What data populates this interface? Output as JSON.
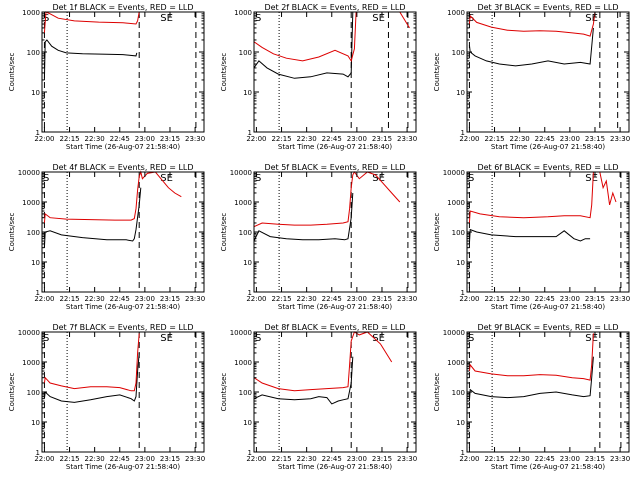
{
  "figure": {
    "xlabel": "Start Time (26-Aug-07 21:58:40)",
    "ylabel": "Counts/sec",
    "xticks": [
      "22:00",
      "22:15",
      "22:30",
      "22:45",
      "23:00",
      "23:15",
      "23:30"
    ],
    "yticks": [
      "1",
      "10",
      "100",
      "1000"
    ],
    "yticks_big": [
      "1",
      "10",
      "100",
      "1000",
      "10000"
    ],
    "saa_label": "S",
    "eclipse_label": "SE",
    "colors": {
      "events": "#000000",
      "lld": "#dd0000",
      "axes": "#000000"
    }
  },
  "chart_data": [
    {
      "type": "line",
      "title": "Det 1f BLACK = Events, RED = LLD",
      "xlim_min": [
        0,
        100
      ],
      "ylim_log10": [
        0,
        3
      ],
      "log_y": true,
      "dotted_x": [
        15.5
      ],
      "dashed_x": [
        1.5,
        60,
        95
      ],
      "series": [
        {
          "name": "Events",
          "color": "black",
          "x": [
            1.5,
            2,
            3,
            6,
            10,
            15,
            25,
            40,
            50,
            58,
            58.5
          ],
          "y": [
            20,
            180,
            200,
            140,
            110,
            95,
            90,
            88,
            86,
            80,
            95
          ]
        },
        {
          "name": "LLD",
          "color": "red",
          "x": [
            1.5,
            2.5,
            5,
            10,
            20,
            35,
            50,
            58,
            59,
            60
          ],
          "y": [
            300,
            1000,
            900,
            700,
            600,
            560,
            540,
            500,
            600,
            1000
          ]
        }
      ]
    },
    {
      "type": "line",
      "title": "Det 2f BLACK = Events, RED = LLD",
      "xlim_min": [
        0,
        100
      ],
      "ylim_log10": [
        0,
        3
      ],
      "log_y": true,
      "dotted_x": [
        15.5
      ],
      "dashed_x": [
        60,
        83,
        95
      ],
      "series": [
        {
          "name": "Events",
          "color": "black",
          "x": [
            0,
            3,
            8,
            15,
            25,
            35,
            45,
            55,
            58,
            60,
            61
          ],
          "y": [
            40,
            60,
            40,
            28,
            22,
            24,
            30,
            28,
            24,
            30,
            1000
          ]
        },
        {
          "name": "LLD",
          "color": "red",
          "x": [
            0,
            5,
            12,
            20,
            30,
            40,
            50,
            58,
            60,
            62,
            63,
            90,
            96
          ],
          "y": [
            180,
            130,
            90,
            70,
            60,
            75,
            110,
            80,
            60,
            120,
            1000,
            1000,
            400
          ]
        }
      ]
    },
    {
      "type": "line",
      "title": "Det 3f BLACK = Events, RED = LLD",
      "xlim_min": [
        0,
        100
      ],
      "ylim_log10": [
        0,
        3
      ],
      "log_y": true,
      "dotted_x": [
        15.5
      ],
      "dashed_x": [
        1.5,
        82,
        93
      ],
      "series": [
        {
          "name": "Events",
          "color": "black",
          "x": [
            1.5,
            2,
            5,
            12,
            20,
            30,
            40,
            50,
            60,
            70,
            76,
            78
          ],
          "y": [
            150,
            100,
            80,
            60,
            50,
            45,
            50,
            60,
            50,
            55,
            50,
            400
          ]
        },
        {
          "name": "LLD",
          "color": "red",
          "x": [
            1.5,
            2,
            6,
            15,
            25,
            35,
            45,
            55,
            65,
            72,
            76,
            78,
            79
          ],
          "y": [
            500,
            800,
            550,
            420,
            350,
            330,
            340,
            330,
            300,
            280,
            250,
            500,
            1000
          ]
        }
      ]
    },
    {
      "type": "line",
      "title": "Det 4f BLACK = Events, RED = LLD",
      "xlim_min": [
        0,
        100
      ],
      "ylim_log10": [
        0,
        4
      ],
      "log_y": true,
      "dotted_x": [
        15.5
      ],
      "dashed_x": [
        1.5,
        60,
        95
      ],
      "series": [
        {
          "name": "Events",
          "color": "black",
          "x": [
            1.5,
            2,
            5,
            12,
            25,
            40,
            52,
            56,
            57,
            58,
            60,
            61
          ],
          "y": [
            30,
            100,
            110,
            80,
            65,
            55,
            55,
            50,
            60,
            120,
            800,
            3000
          ]
        },
        {
          "name": "LLD",
          "color": "red",
          "x": [
            1.5,
            2,
            5,
            15,
            30,
            45,
            55,
            57,
            58,
            59,
            60,
            61,
            62,
            65,
            70,
            78,
            82,
            86
          ],
          "y": [
            200,
            400,
            300,
            270,
            260,
            250,
            250,
            280,
            600,
            2500,
            7000,
            10000,
            6000,
            9000,
            10000,
            3000,
            2000,
            1500
          ]
        }
      ]
    },
    {
      "type": "line",
      "title": "Det 5f BLACK = Events, RED = LLD",
      "xlim_min": [
        0,
        100
      ],
      "ylim_log10": [
        0,
        4
      ],
      "log_y": true,
      "dotted_x": [
        15.5
      ],
      "dashed_x": [
        60,
        95
      ],
      "series": [
        {
          "name": "Events",
          "color": "black",
          "x": [
            0,
            3,
            10,
            20,
            30,
            40,
            50,
            56,
            58,
            60,
            61
          ],
          "y": [
            50,
            110,
            70,
            60,
            55,
            55,
            60,
            55,
            60,
            300,
            2000
          ]
        },
        {
          "name": "LLD",
          "color": "red",
          "x": [
            0,
            5,
            15,
            25,
            35,
            45,
            55,
            58,
            59,
            60,
            61,
            62,
            65,
            70,
            75,
            85,
            90
          ],
          "y": [
            150,
            200,
            180,
            170,
            170,
            180,
            200,
            220,
            600,
            3000,
            8000,
            10000,
            6000,
            10000,
            8000,
            2000,
            1000
          ]
        }
      ]
    },
    {
      "type": "line",
      "title": "Det 6f BLACK = Events, RED = LLD",
      "xlim_min": [
        0,
        100
      ],
      "ylim_log10": [
        0,
        4
      ],
      "log_y": true,
      "dotted_x": [
        15.5
      ],
      "dashed_x": [
        1.5,
        95
      ],
      "series": [
        {
          "name": "Events",
          "color": "black",
          "x": [
            1.5,
            2,
            6,
            15,
            30,
            45,
            55,
            60,
            66,
            70,
            73,
            76
          ],
          "y": [
            40,
            120,
            100,
            80,
            70,
            70,
            70,
            110,
            60,
            50,
            60,
            60
          ]
        },
        {
          "name": "LLD",
          "color": "red",
          "x": [
            1.5,
            2,
            8,
            20,
            35,
            50,
            60,
            70,
            76,
            77,
            78,
            80,
            82,
            84,
            86,
            88,
            90,
            92
          ],
          "y": [
            200,
            500,
            400,
            320,
            300,
            320,
            350,
            350,
            300,
            800,
            10000,
            10000,
            10000,
            3000,
            5000,
            800,
            2000,
            1000
          ]
        }
      ]
    },
    {
      "type": "line",
      "title": "Det 7f BLACK = Events, RED = LLD",
      "xlim_min": [
        0,
        100
      ],
      "ylim_log10": [
        0,
        4
      ],
      "log_y": true,
      "dotted_x": [
        15.5
      ],
      "dashed_x": [
        1.5,
        60,
        95
      ],
      "series": [
        {
          "name": "Events",
          "color": "black",
          "x": [
            1.5,
            2,
            5,
            12,
            20,
            30,
            40,
            48,
            55,
            57,
            58,
            59,
            60
          ],
          "y": [
            60,
            100,
            70,
            50,
            45,
            55,
            70,
            80,
            60,
            50,
            70,
            500,
            2000
          ]
        },
        {
          "name": "LLD",
          "color": "red",
          "x": [
            1.5,
            2,
            5,
            12,
            20,
            30,
            40,
            48,
            55,
            57,
            58,
            59,
            60
          ],
          "y": [
            200,
            300,
            200,
            160,
            130,
            150,
            150,
            140,
            110,
            110,
            200,
            2000,
            9000
          ]
        }
      ]
    },
    {
      "type": "line",
      "title": "Det 8f BLACK = Events, RED = LLD",
      "xlim_min": [
        0,
        100
      ],
      "ylim_log10": [
        0,
        4
      ],
      "log_y": true,
      "dotted_x": [
        15.5
      ],
      "dashed_x": [
        60,
        95
      ],
      "series": [
        {
          "name": "Events",
          "color": "black",
          "x": [
            0,
            5,
            15,
            25,
            35,
            40,
            45,
            48,
            52,
            55,
            58,
            60,
            61
          ],
          "y": [
            60,
            80,
            60,
            55,
            60,
            70,
            65,
            40,
            50,
            55,
            60,
            200,
            1500
          ]
        },
        {
          "name": "LLD",
          "color": "red",
          "x": [
            0,
            5,
            15,
            25,
            35,
            45,
            55,
            58,
            59,
            60,
            62,
            65,
            70,
            78,
            85
          ],
          "y": [
            300,
            200,
            130,
            110,
            120,
            130,
            140,
            150,
            800,
            5000,
            10000,
            8000,
            10000,
            4000,
            1000
          ]
        }
      ]
    },
    {
      "type": "line",
      "title": "Det 9f BLACK = Events, RED = LLD",
      "xlim_min": [
        0,
        100
      ],
      "ylim_log10": [
        0,
        4
      ],
      "log_y": true,
      "dotted_x": [
        15.5
      ],
      "dashed_x": [
        1.5,
        82,
        95
      ],
      "series": [
        {
          "name": "Events",
          "color": "black",
          "x": [
            1.5,
            2,
            5,
            15,
            25,
            35,
            45,
            55,
            65,
            72,
            76,
            77,
            78
          ],
          "y": [
            50,
            120,
            90,
            70,
            65,
            70,
            90,
            100,
            80,
            70,
            75,
            300,
            1500
          ]
        },
        {
          "name": "LLD",
          "color": "red",
          "x": [
            1.5,
            2,
            5,
            15,
            25,
            35,
            45,
            55,
            65,
            72,
            76,
            77,
            78
          ],
          "y": [
            500,
            800,
            500,
            400,
            350,
            350,
            380,
            360,
            300,
            280,
            250,
            800,
            9000
          ]
        }
      ]
    }
  ]
}
